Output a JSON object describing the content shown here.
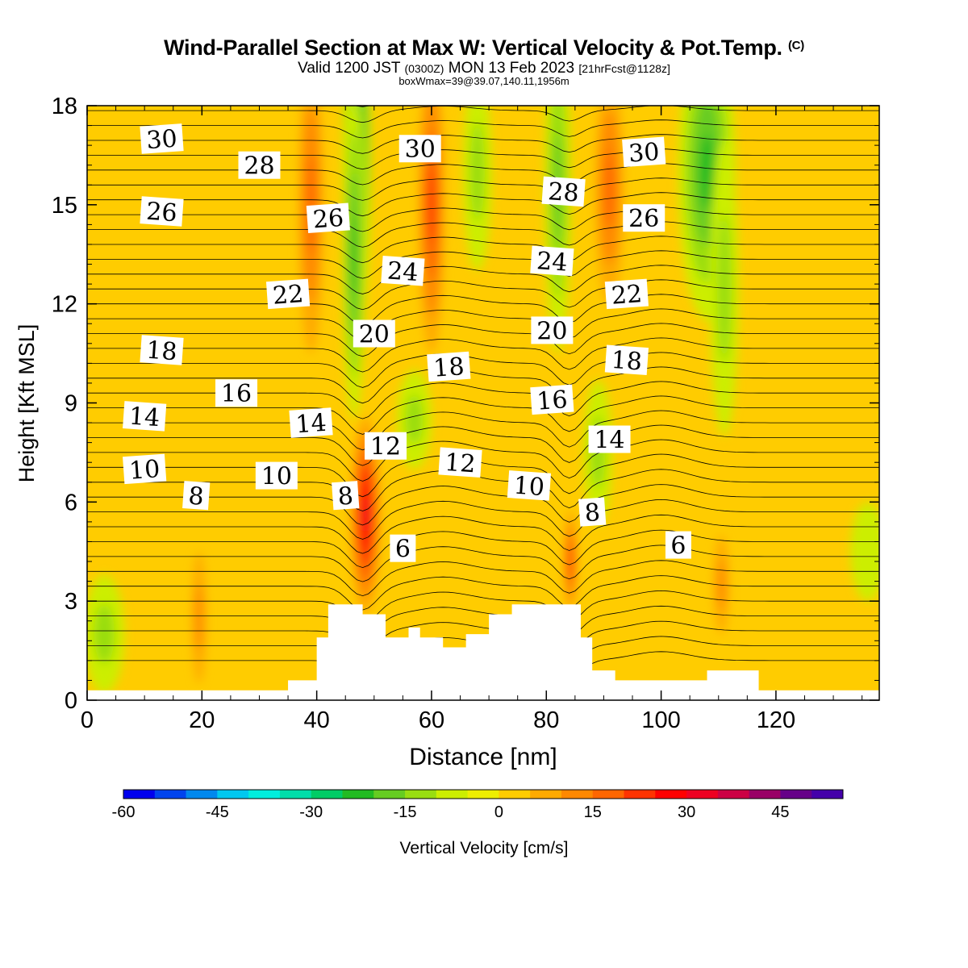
{
  "title": {
    "main": "Wind-Parallel Section at Max W: Vertical Velocity & Pot.Temp.",
    "copyright": "(C)",
    "valid_prefix": "Valid 1200 JST",
    "valid_utc": "(0300Z)",
    "valid_date": "MON 13 Feb 2023",
    "forecast": "[21hrFcst@1128z]",
    "boxwmax": "boxWmax=39@39.07,140.11,1956m"
  },
  "chart_data": {
    "type": "heatmap",
    "xlabel": "Distance [nm]",
    "ylabel": "Height [Kft MSL]",
    "xlim": [
      0,
      138
    ],
    "ylim": [
      0,
      18
    ],
    "x_ticks": [
      "0",
      "20",
      "40",
      "60",
      "80",
      "100",
      "120"
    ],
    "y_ticks": [
      "0",
      "3",
      "6",
      "9",
      "12",
      "15",
      "18"
    ],
    "colorbar": {
      "label": "Vertical Velocity [cm/s]",
      "ticks": [
        "-60",
        "-45",
        "-30",
        "-15",
        "0",
        "15",
        "30",
        "45"
      ],
      "range": [
        -60,
        55
      ],
      "step": 5,
      "colors": [
        "#0000ee",
        "#0044ee",
        "#0088ee",
        "#00c8f0",
        "#00eedd",
        "#00ddaa",
        "#00cc66",
        "#22bb22",
        "#66cc22",
        "#99dd11",
        "#ccee00",
        "#eeee00",
        "#ffcc00",
        "#ffaa00",
        "#ff8800",
        "#ff6600",
        "#ff3300",
        "#ff0000",
        "#ee0022",
        "#cc0044",
        "#990066",
        "#660088",
        "#4400aa"
      ]
    },
    "terrain": [
      [
        35,
        0.6
      ],
      [
        40,
        1.9
      ],
      [
        42,
        2.9
      ],
      [
        48,
        2.6
      ],
      [
        52,
        1.9
      ],
      [
        56,
        2.2
      ],
      [
        58,
        1.9
      ],
      [
        62,
        1.6
      ],
      [
        66,
        2.0
      ],
      [
        70,
        2.6
      ],
      [
        74,
        2.9
      ],
      [
        84,
        2.9
      ],
      [
        86,
        1.9
      ],
      [
        88,
        0.9
      ],
      [
        92,
        0.6
      ],
      [
        104,
        0.6
      ],
      [
        108,
        0.9
      ],
      [
        116,
        0.9
      ],
      [
        117,
        0.3
      ],
      [
        138,
        0.3
      ]
    ],
    "w_features": [
      {
        "x": 48.5,
        "y": 5.4,
        "rx": 1.6,
        "ry": 1.5,
        "w": 50
      },
      {
        "x": 48.5,
        "y": 5.6,
        "rx": 2.6,
        "ry": 3.0,
        "w": 32
      },
      {
        "x": 84.2,
        "y": 4.2,
        "rx": 1.0,
        "ry": 1.6,
        "w": 25
      },
      {
        "x": 47.0,
        "y": 16.5,
        "rx": 2.5,
        "ry": 5.5,
        "w": -30
      },
      {
        "x": 46.5,
        "y": 13.5,
        "rx": 2.0,
        "ry": 5.0,
        "w": -22
      },
      {
        "x": 82.0,
        "y": 15.5,
        "rx": 2.3,
        "ry": 5.0,
        "w": -18
      },
      {
        "x": 108.0,
        "y": 16.0,
        "rx": 5.0,
        "ry": 4.5,
        "w": -20
      },
      {
        "x": 111.0,
        "y": 12.5,
        "rx": 2.5,
        "ry": 4.5,
        "w": -12
      },
      {
        "x": 89.0,
        "y": 7.5,
        "rx": 2.5,
        "ry": 2.2,
        "w": -13
      },
      {
        "x": 57.0,
        "y": 8.5,
        "rx": 3.0,
        "ry": 1.5,
        "w": -11
      },
      {
        "x": 68.0,
        "y": 16.0,
        "rx": 2.5,
        "ry": 3.0,
        "w": -12
      },
      {
        "x": 60.0,
        "y": 15.0,
        "rx": 2.3,
        "ry": 4.5,
        "w": 20
      },
      {
        "x": 39.0,
        "y": 15.0,
        "rx": 2.2,
        "ry": 4.5,
        "w": 18
      },
      {
        "x": 91.0,
        "y": 15.5,
        "rx": 2.5,
        "ry": 3.5,
        "w": 18
      },
      {
        "x": 3.0,
        "y": 2.0,
        "rx": 3.5,
        "ry": 1.8,
        "w": -14
      },
      {
        "x": 136.0,
        "y": 4.5,
        "rx": 3.0,
        "ry": 1.5,
        "w": -8
      },
      {
        "x": 19.5,
        "y": 2.5,
        "rx": 1.2,
        "ry": 2.0,
        "w": 12
      },
      {
        "x": 110.5,
        "y": 3.5,
        "rx": 1.3,
        "ry": 1.5,
        "w": 14
      }
    ],
    "theta_labels": [
      {
        "text": "30",
        "x": 13,
        "y": 17.0
      },
      {
        "text": "28",
        "x": 30,
        "y": 16.2
      },
      {
        "text": "26",
        "x": 13,
        "y": 14.8
      },
      {
        "text": "26",
        "x": 42,
        "y": 14.6
      },
      {
        "text": "30",
        "x": 58,
        "y": 16.7
      },
      {
        "text": "24",
        "x": 55,
        "y": 13.0
      },
      {
        "text": "22",
        "x": 35,
        "y": 12.3
      },
      {
        "text": "20",
        "x": 50,
        "y": 11.1
      },
      {
        "text": "18",
        "x": 13,
        "y": 10.6
      },
      {
        "text": "18",
        "x": 63,
        "y": 10.1
      },
      {
        "text": "16",
        "x": 26,
        "y": 9.3
      },
      {
        "text": "14",
        "x": 10,
        "y": 8.6
      },
      {
        "text": "14",
        "x": 39,
        "y": 8.4
      },
      {
        "text": "12",
        "x": 52,
        "y": 7.7
      },
      {
        "text": "12",
        "x": 65,
        "y": 7.2
      },
      {
        "text": "10",
        "x": 10,
        "y": 7.0
      },
      {
        "text": "10",
        "x": 33,
        "y": 6.8
      },
      {
        "text": "8",
        "x": 19,
        "y": 6.2
      },
      {
        "text": "8",
        "x": 45,
        "y": 6.2
      },
      {
        "text": "6",
        "x": 55,
        "y": 4.6
      },
      {
        "text": "28",
        "x": 83,
        "y": 15.4
      },
      {
        "text": "30",
        "x": 97,
        "y": 16.6
      },
      {
        "text": "26",
        "x": 97,
        "y": 14.6
      },
      {
        "text": "24",
        "x": 81,
        "y": 13.3
      },
      {
        "text": "22",
        "x": 94,
        "y": 12.3
      },
      {
        "text": "20",
        "x": 81,
        "y": 11.2
      },
      {
        "text": "18",
        "x": 94,
        "y": 10.3
      },
      {
        "text": "16",
        "x": 81,
        "y": 9.1
      },
      {
        "text": "14",
        "x": 91,
        "y": 7.9
      },
      {
        "text": "10",
        "x": 77,
        "y": 6.5
      },
      {
        "text": "8",
        "x": 88,
        "y": 5.7
      },
      {
        "text": "6",
        "x": 103,
        "y": 4.7
      }
    ]
  }
}
